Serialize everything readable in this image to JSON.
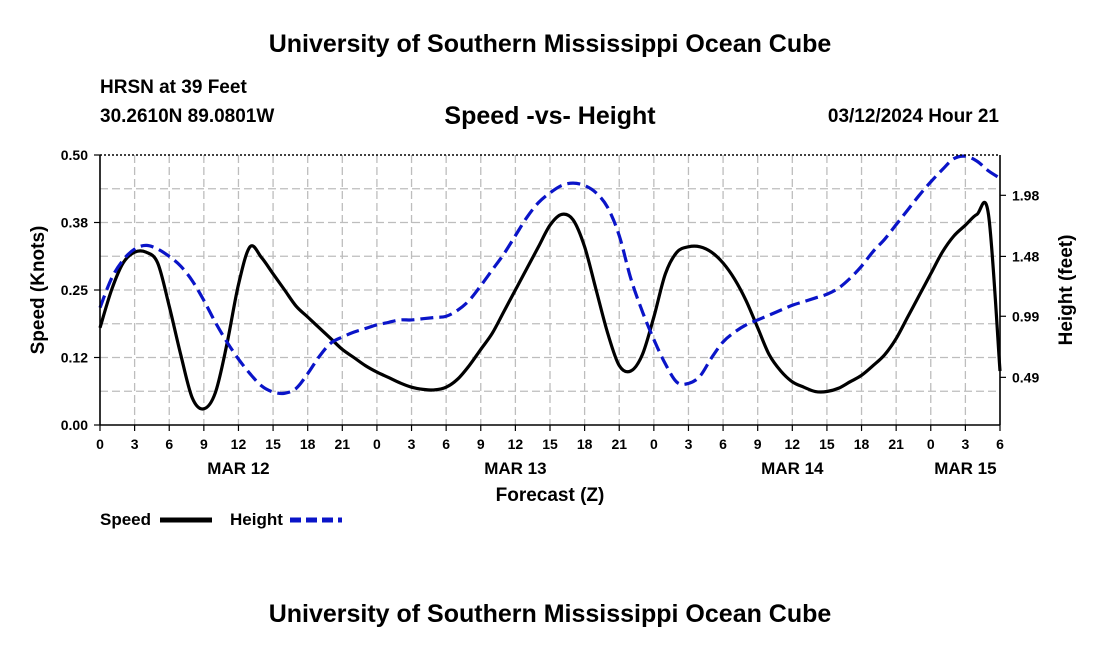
{
  "header": {
    "title": "University of Southern Mississippi Ocean Cube",
    "station": "HRSN at 39 Feet",
    "coordinates": "30.2610N  89.0801W",
    "date": "03/12/2024 Hour 21"
  },
  "footer": {
    "title": "University of Southern Mississippi Ocean Cube"
  },
  "colors": {
    "speed": "#000000",
    "height": "#0a14c8",
    "grid": "#bdbdbd"
  },
  "chart_data": {
    "type": "line",
    "title": "Speed -vs- Height",
    "xlabel": "Forecast (Z)",
    "ylabel_left": "Speed (Knots)",
    "ylabel_right": "Height (feet)",
    "x_range_hours": [
      0,
      78
    ],
    "x_tick_labels": [
      "0",
      "3",
      "6",
      "9",
      "12",
      "15",
      "18",
      "21",
      "0",
      "3",
      "6",
      "9",
      "12",
      "15",
      "18",
      "21",
      "0",
      "3",
      "6",
      "9",
      "12",
      "15",
      "18",
      "21",
      "0",
      "3",
      "6"
    ],
    "date_labels": [
      {
        "hour": 12,
        "label": "MAR 12"
      },
      {
        "hour": 36,
        "label": "MAR 13"
      },
      {
        "hour": 60,
        "label": "MAR 14"
      },
      {
        "hour": 75,
        "label": "MAR 15"
      }
    ],
    "y_left": {
      "range": [
        0,
        0.5
      ],
      "ticks": [
        "0.00",
        "0.12",
        "0.25",
        "0.38",
        "0.50"
      ],
      "tick_values": [
        0,
        0.125,
        0.25,
        0.375,
        0.5
      ]
    },
    "y_right": {
      "range": [
        0.1,
        2.31
      ],
      "ticks": [
        "0.49",
        "0.99",
        "1.48",
        "1.98"
      ],
      "tick_values": [
        0.49,
        0.99,
        1.48,
        1.98
      ]
    },
    "legend": [
      {
        "name": "Speed",
        "style": "solid"
      },
      {
        "name": "Height",
        "style": "dashed"
      }
    ],
    "series": [
      {
        "name": "Speed",
        "axis": "left",
        "x": [
          0,
          1,
          2,
          3,
          4,
          5,
          6,
          7,
          8,
          9,
          10,
          11,
          12,
          13,
          14,
          15,
          16,
          17,
          18,
          19,
          20,
          21,
          22,
          23,
          24,
          25,
          26,
          27,
          28,
          29,
          30,
          31,
          32,
          33,
          34,
          35,
          36,
          37,
          38,
          39,
          40,
          41,
          42,
          43,
          44,
          45,
          46,
          47,
          48,
          49,
          50,
          51,
          52,
          53,
          54,
          55,
          56,
          57,
          58,
          59,
          60,
          61,
          62,
          63,
          64,
          65,
          66,
          67,
          68,
          69,
          70,
          71,
          72,
          73,
          74,
          75,
          76,
          77,
          78
        ],
        "values": [
          0.18,
          0.25,
          0.3,
          0.32,
          0.32,
          0.3,
          0.22,
          0.13,
          0.05,
          0.03,
          0.06,
          0.15,
          0.26,
          0.33,
          0.31,
          0.28,
          0.25,
          0.22,
          0.2,
          0.18,
          0.16,
          0.14,
          0.125,
          0.11,
          0.098,
          0.088,
          0.078,
          0.07,
          0.066,
          0.065,
          0.07,
          0.085,
          0.11,
          0.14,
          0.17,
          0.21,
          0.25,
          0.29,
          0.33,
          0.37,
          0.39,
          0.38,
          0.33,
          0.25,
          0.17,
          0.11,
          0.1,
          0.13,
          0.2,
          0.28,
          0.32,
          0.33,
          0.33,
          0.32,
          0.3,
          0.27,
          0.23,
          0.18,
          0.13,
          0.1,
          0.08,
          0.07,
          0.062,
          0.062,
          0.068,
          0.08,
          0.092,
          0.11,
          0.13,
          0.16,
          0.2,
          0.24,
          0.28,
          0.32,
          0.35,
          0.37,
          0.39,
          0.39,
          0.1
        ]
      },
      {
        "name": "Height",
        "axis": "right",
        "x": [
          0,
          1,
          2,
          3,
          4,
          5,
          6,
          7,
          8,
          9,
          10,
          11,
          12,
          13,
          14,
          15,
          16,
          17,
          18,
          19,
          20,
          21,
          22,
          23,
          24,
          25,
          26,
          27,
          28,
          29,
          30,
          31,
          32,
          33,
          34,
          35,
          36,
          37,
          38,
          39,
          40,
          41,
          42,
          43,
          44,
          45,
          46,
          47,
          48,
          49,
          50,
          51,
          52,
          53,
          54,
          55,
          56,
          57,
          58,
          59,
          60,
          61,
          62,
          63,
          64,
          65,
          66,
          67,
          68,
          69,
          70,
          71,
          72,
          73,
          74,
          75,
          76,
          77,
          78
        ],
        "values": [
          1.06,
          1.3,
          1.45,
          1.54,
          1.57,
          1.54,
          1.48,
          1.4,
          1.28,
          1.12,
          0.94,
          0.78,
          0.64,
          0.52,
          0.42,
          0.37,
          0.36,
          0.4,
          0.52,
          0.66,
          0.77,
          0.82,
          0.86,
          0.89,
          0.92,
          0.94,
          0.96,
          0.96,
          0.97,
          0.98,
          0.99,
          1.04,
          1.12,
          1.24,
          1.37,
          1.5,
          1.65,
          1.8,
          1.92,
          2.0,
          2.06,
          2.08,
          2.06,
          2.0,
          1.88,
          1.65,
          1.3,
          1.03,
          0.8,
          0.6,
          0.45,
          0.44,
          0.5,
          0.65,
          0.78,
          0.86,
          0.92,
          0.96,
          1.0,
          1.04,
          1.08,
          1.11,
          1.14,
          1.17,
          1.22,
          1.3,
          1.4,
          1.52,
          1.62,
          1.74,
          1.86,
          1.98,
          2.09,
          2.19,
          2.28,
          2.3,
          2.26,
          2.18,
          2.12
        ]
      }
    ]
  }
}
